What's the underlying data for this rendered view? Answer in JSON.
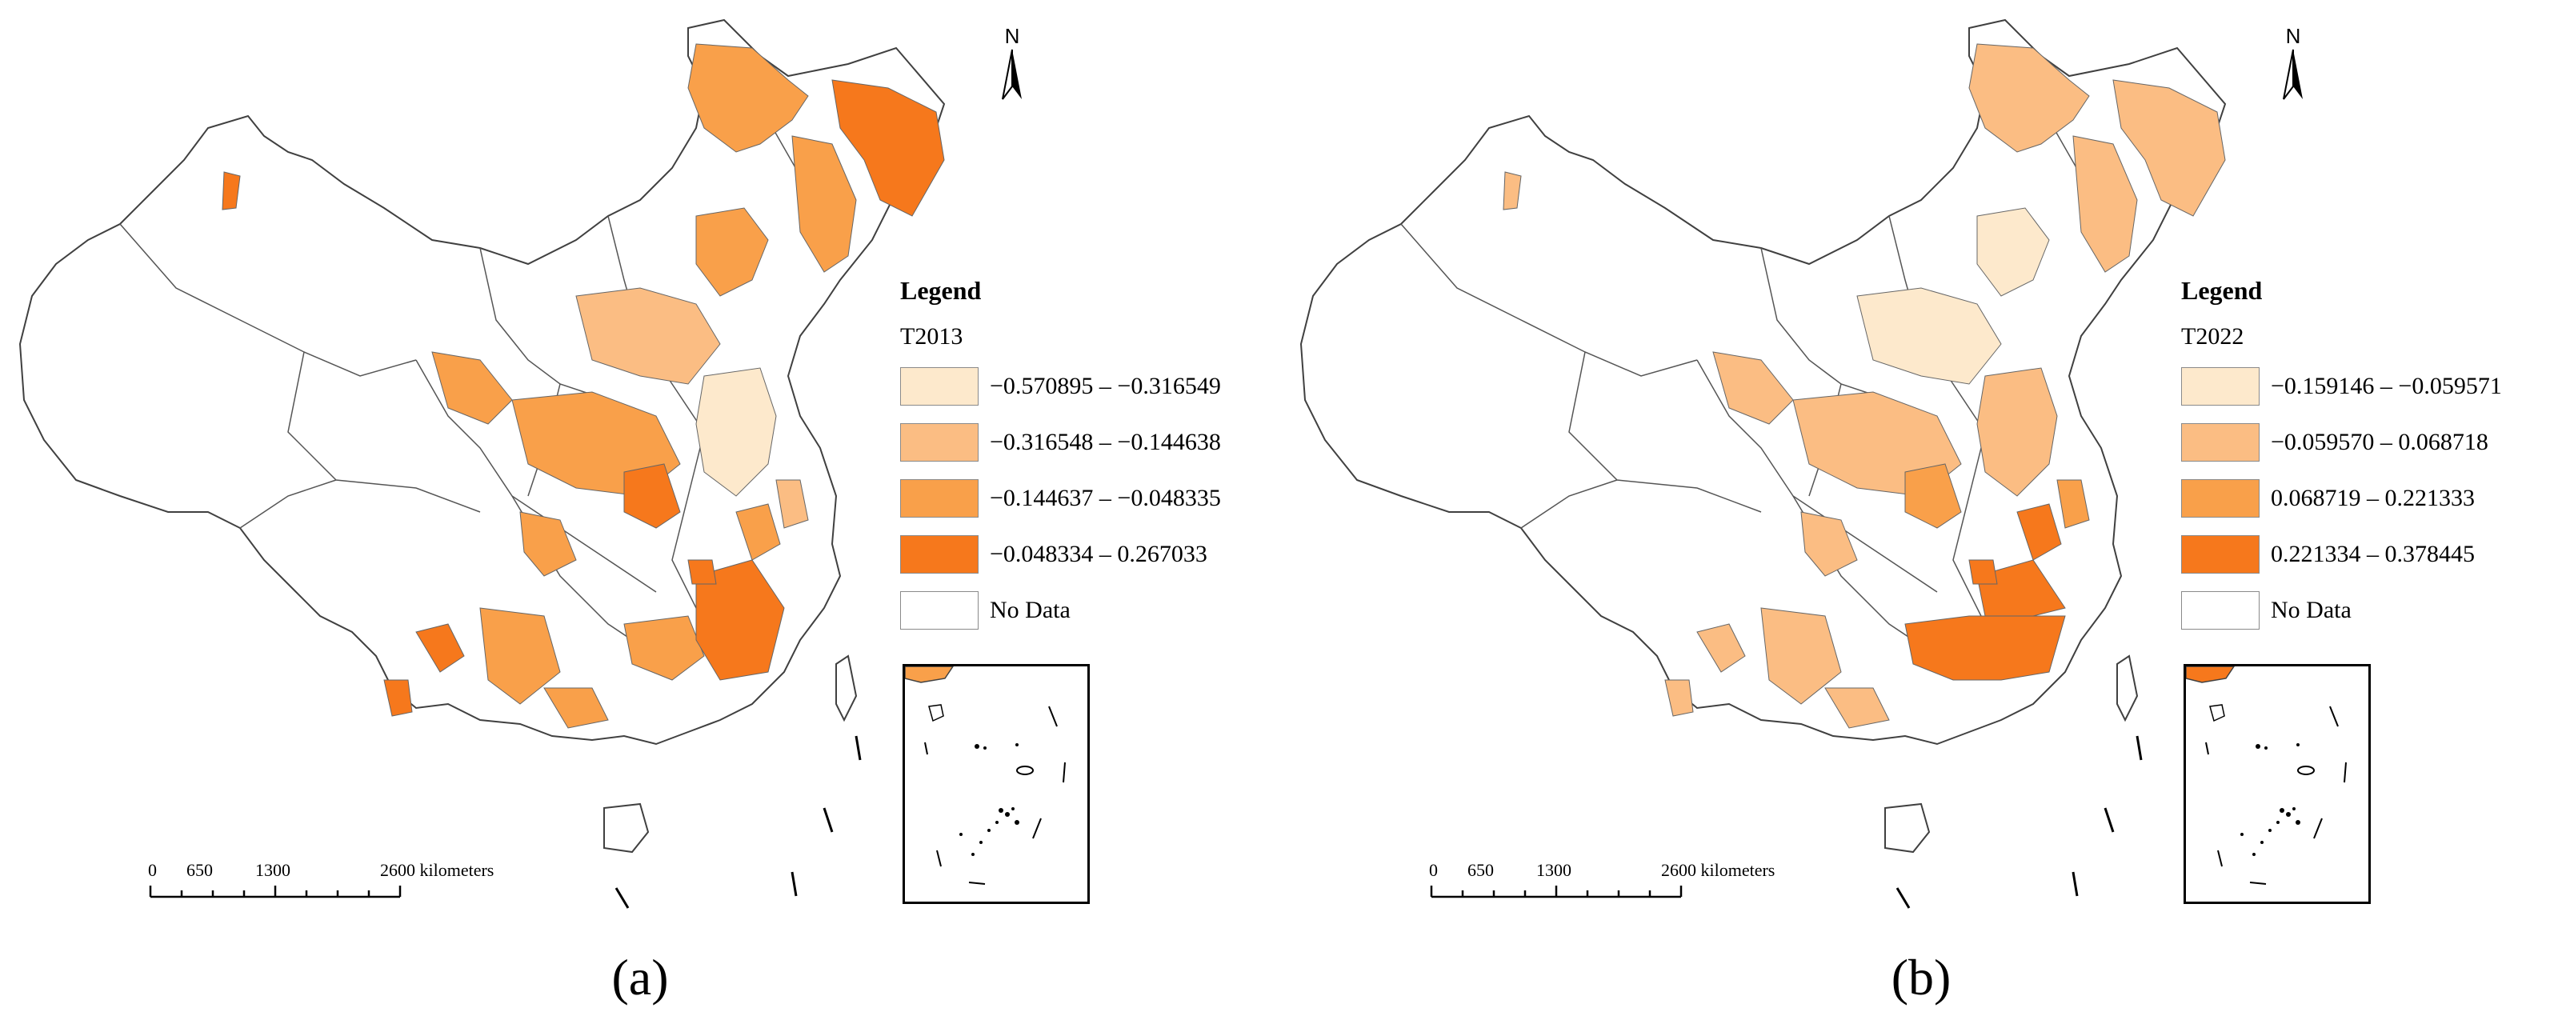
{
  "colors": {
    "class1": "#fde9cc",
    "class2": "#fbbd83",
    "class3": "#f9a04a",
    "class4": "#f6781c",
    "no_data": "#ffffff",
    "boundary": "#404040"
  },
  "panels": [
    {
      "caption": "(a)",
      "north_label": "N",
      "legend": {
        "title": "Legend",
        "field": "T2013",
        "classes": [
          {
            "label": "−0.570895 – −0.316549",
            "color": "#fde9cc"
          },
          {
            "label": "−0.316548 – −0.144638",
            "color": "#fbbd83"
          },
          {
            "label": "−0.144637 – −0.048335",
            "color": "#f9a04a"
          },
          {
            "label": "−0.048334 – 0.267033",
            "color": "#f6781c"
          },
          {
            "label": "No Data",
            "color": "#ffffff"
          }
        ]
      },
      "scale_bar": {
        "ticks": [
          "0",
          "650",
          "1300",
          "2600 kilometers"
        ]
      }
    },
    {
      "caption": "(b)",
      "north_label": "N",
      "legend": {
        "title": "Legend",
        "field": "T2022",
        "classes": [
          {
            "label": "−0.159146 – −0.059571",
            "color": "#fde9cc"
          },
          {
            "label": "−0.059570 – 0.068718",
            "color": "#fbbd83"
          },
          {
            "label": "0.068719 – 0.221333",
            "color": "#f9a04a"
          },
          {
            "label": "0.221334 – 0.378445",
            "color": "#f6781c"
          },
          {
            "label": "No Data",
            "color": "#ffffff"
          }
        ]
      },
      "scale_bar": {
        "ticks": [
          "0",
          "650",
          "1300",
          "2600 kilometers"
        ]
      }
    }
  ]
}
